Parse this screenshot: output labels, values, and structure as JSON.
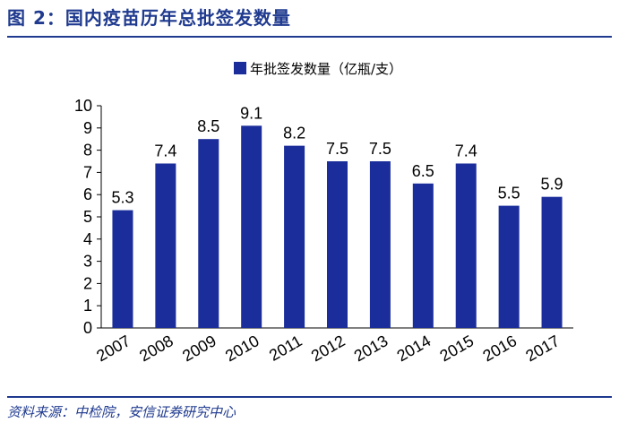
{
  "figure": {
    "title": "图 2：国内疫苗历年总批签发数量",
    "source": "资料来源：中检院，安信证券研究中心"
  },
  "colors": {
    "bar": "#1a2d9b",
    "title": "#1f3a8f",
    "rule": "#1f3a8f"
  },
  "chart_data": {
    "type": "bar",
    "title": "",
    "xlabel": "",
    "ylabel": "",
    "categories": [
      "2007",
      "2008",
      "2009",
      "2010",
      "2011",
      "2012",
      "2013",
      "2014",
      "2015",
      "2016",
      "2017"
    ],
    "series": [
      {
        "name": "年批签发数量（亿瓶/支）",
        "values": [
          5.3,
          7.4,
          8.5,
          9.1,
          8.2,
          7.5,
          7.5,
          6.5,
          7.4,
          5.5,
          5.9
        ]
      }
    ],
    "data_labels": [
      "5.3",
      "7.4",
      "8.5",
      "9.1",
      "8.2",
      "7.5",
      "7.5",
      "6.5",
      "7.4",
      "5.5",
      "5.9"
    ],
    "ylim": [
      0,
      10
    ],
    "yticks": [
      0,
      1,
      2,
      3,
      4,
      5,
      6,
      7,
      8,
      9,
      10
    ],
    "grid": false,
    "legend_position": "top-center"
  }
}
